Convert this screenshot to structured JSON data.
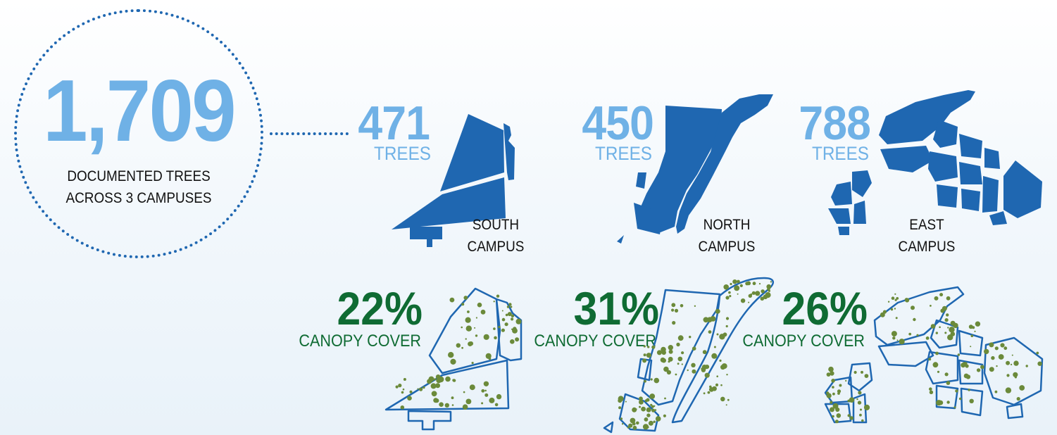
{
  "summary": {
    "total": "1,709",
    "label_line1": "DOCUMENTED TREES",
    "label_line2": "ACROSS 3 CAMPUSES"
  },
  "campuses": [
    {
      "count": "471",
      "count_label": "TREES",
      "name_line1": "SOUTH",
      "name_line2": "CAMPUS",
      "canopy_pct": "22%",
      "canopy_label": "CANOPY COVER"
    },
    {
      "count": "450",
      "count_label": "TREES",
      "name_line1": "NORTH",
      "name_line2": "CAMPUS",
      "canopy_pct": "31%",
      "canopy_label": "CANOPY COVER"
    },
    {
      "count": "788",
      "count_label": "TREES",
      "name_line1": "EAST",
      "name_line2": "CAMPUS",
      "canopy_pct": "26%",
      "canopy_label": "CANOPY COVER"
    }
  ],
  "colors": {
    "light_blue": "#6fb1e6",
    "dark_blue": "#1f67b1",
    "green": "#0f6b33",
    "canopy_green": "#6b8a3a"
  }
}
